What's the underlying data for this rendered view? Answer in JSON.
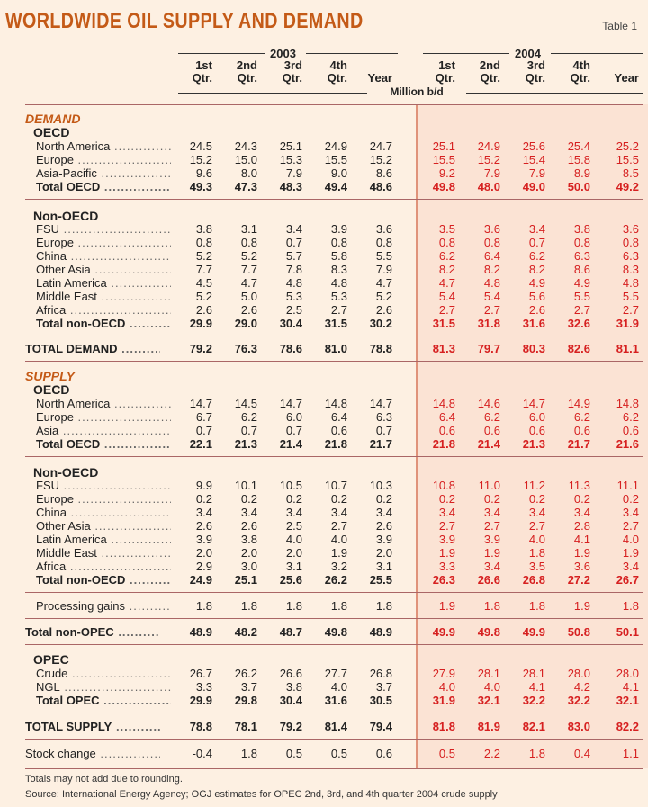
{
  "title": "Worldwide oil supply and demand",
  "table_label": "Table 1",
  "years": [
    "2003",
    "2004"
  ],
  "column_headers": [
    [
      "1st",
      "Qtr."
    ],
    [
      "2nd",
      "Qtr."
    ],
    [
      "3rd",
      "Qtr."
    ],
    [
      "4th",
      "Qtr."
    ],
    [
      "",
      "Year"
    ],
    [
      "1st",
      "Qtr."
    ],
    [
      "2nd",
      "Qtr."
    ],
    [
      "3rd",
      "Qtr."
    ],
    [
      "4th",
      "Qtr."
    ],
    [
      "",
      "Year"
    ]
  ],
  "unit": "Million b/d",
  "sections": {
    "demand": "DEMAND",
    "supply": "SUPPLY"
  },
  "rows": [
    {
      "type": "section",
      "text": "DEMAND",
      "key": "demand"
    },
    {
      "type": "sub",
      "text": "OECD"
    },
    {
      "type": "data",
      "label": "North America",
      "values": [
        "24.5",
        "24.3",
        "25.1",
        "24.9",
        "24.7",
        "25.1",
        "24.9",
        "25.6",
        "25.4",
        "25.2"
      ]
    },
    {
      "type": "data",
      "label": "Europe",
      "values": [
        "15.2",
        "15.0",
        "15.3",
        "15.5",
        "15.2",
        "15.5",
        "15.2",
        "15.4",
        "15.8",
        "15.5"
      ]
    },
    {
      "type": "data",
      "label": "Asia-Pacific",
      "values": [
        "9.6",
        "8.0",
        "7.9",
        "9.0",
        "8.6",
        "9.2",
        "7.9",
        "7.9",
        "8.9",
        "8.5"
      ]
    },
    {
      "type": "total",
      "label": "Total OECD",
      "values": [
        "49.3",
        "47.3",
        "48.3",
        "49.4",
        "48.6",
        "49.8",
        "48.0",
        "49.0",
        "50.0",
        "49.2"
      ]
    },
    {
      "type": "sub",
      "text": "Non-OECD"
    },
    {
      "type": "data",
      "label": "FSU",
      "values": [
        "3.8",
        "3.1",
        "3.4",
        "3.9",
        "3.6",
        "3.5",
        "3.6",
        "3.4",
        "3.8",
        "3.6"
      ]
    },
    {
      "type": "data",
      "label": "Europe",
      "values": [
        "0.8",
        "0.8",
        "0.7",
        "0.8",
        "0.8",
        "0.8",
        "0.8",
        "0.7",
        "0.8",
        "0.8"
      ]
    },
    {
      "type": "data",
      "label": "China",
      "values": [
        "5.2",
        "5.2",
        "5.7",
        "5.8",
        "5.5",
        "6.2",
        "6.4",
        "6.2",
        "6.3",
        "6.3"
      ]
    },
    {
      "type": "data",
      "label": "Other Asia",
      "values": [
        "7.7",
        "7.7",
        "7.8",
        "8.3",
        "7.9",
        "8.2",
        "8.2",
        "8.2",
        "8.6",
        "8.3"
      ]
    },
    {
      "type": "data",
      "label": "Latin America",
      "values": [
        "4.5",
        "4.7",
        "4.8",
        "4.8",
        "4.7",
        "4.7",
        "4.8",
        "4.9",
        "4.9",
        "4.8"
      ]
    },
    {
      "type": "data",
      "label": "Middle East",
      "values": [
        "5.2",
        "5.0",
        "5.3",
        "5.3",
        "5.2",
        "5.4",
        "5.4",
        "5.6",
        "5.5",
        "5.5"
      ]
    },
    {
      "type": "data",
      "label": "Africa",
      "values": [
        "2.6",
        "2.6",
        "2.5",
        "2.7",
        "2.6",
        "2.7",
        "2.7",
        "2.6",
        "2.7",
        "2.7"
      ]
    },
    {
      "type": "total",
      "label": "Total non-OECD",
      "values": [
        "29.9",
        "29.0",
        "30.4",
        "31.5",
        "30.2",
        "31.5",
        "31.8",
        "31.6",
        "32.6",
        "31.9"
      ]
    },
    {
      "type": "big",
      "label": "TOTAL DEMAND",
      "values": [
        "79.2",
        "76.3",
        "78.6",
        "81.0",
        "78.8",
        "81.3",
        "79.7",
        "80.3",
        "82.6",
        "81.1"
      ]
    },
    {
      "type": "section",
      "text": "SUPPLY",
      "key": "supply"
    },
    {
      "type": "sub",
      "text": "OECD"
    },
    {
      "type": "data",
      "label": "North America",
      "values": [
        "14.7",
        "14.5",
        "14.7",
        "14.8",
        "14.7",
        "14.8",
        "14.6",
        "14.7",
        "14.9",
        "14.8"
      ]
    },
    {
      "type": "data",
      "label": "Europe",
      "values": [
        "6.7",
        "6.2",
        "6.0",
        "6.4",
        "6.3",
        "6.4",
        "6.2",
        "6.0",
        "6.2",
        "6.2"
      ]
    },
    {
      "type": "data",
      "label": "Asia",
      "values": [
        "0.7",
        "0.7",
        "0.7",
        "0.6",
        "0.7",
        "0.6",
        "0.6",
        "0.6",
        "0.6",
        "0.6"
      ]
    },
    {
      "type": "total",
      "label": "Total OECD",
      "values": [
        "22.1",
        "21.3",
        "21.4",
        "21.8",
        "21.7",
        "21.8",
        "21.4",
        "21.3",
        "21.7",
        "21.6"
      ]
    },
    {
      "type": "sub",
      "text": "Non-OECD"
    },
    {
      "type": "data",
      "label": "FSU",
      "values": [
        "9.9",
        "10.1",
        "10.5",
        "10.7",
        "10.3",
        "10.8",
        "11.0",
        "11.2",
        "11.3",
        "11.1"
      ]
    },
    {
      "type": "data",
      "label": "Europe",
      "values": [
        "0.2",
        "0.2",
        "0.2",
        "0.2",
        "0.2",
        "0.2",
        "0.2",
        "0.2",
        "0.2",
        "0.2"
      ]
    },
    {
      "type": "data",
      "label": "China",
      "values": [
        "3.4",
        "3.4",
        "3.4",
        "3.4",
        "3.4",
        "3.4",
        "3.4",
        "3.4",
        "3.4",
        "3.4"
      ]
    },
    {
      "type": "data",
      "label": "Other Asia",
      "values": [
        "2.6",
        "2.6",
        "2.5",
        "2.7",
        "2.6",
        "2.7",
        "2.7",
        "2.7",
        "2.8",
        "2.7"
      ]
    },
    {
      "type": "data",
      "label": "Latin America",
      "values": [
        "3.9",
        "3.8",
        "4.0",
        "4.0",
        "3.9",
        "3.9",
        "3.9",
        "4.0",
        "4.1",
        "4.0"
      ]
    },
    {
      "type": "data",
      "label": "Middle East",
      "values": [
        "2.0",
        "2.0",
        "2.0",
        "1.9",
        "2.0",
        "1.9",
        "1.9",
        "1.8",
        "1.9",
        "1.9"
      ]
    },
    {
      "type": "data",
      "label": "Africa",
      "values": [
        "2.9",
        "3.0",
        "3.1",
        "3.2",
        "3.1",
        "3.3",
        "3.4",
        "3.5",
        "3.6",
        "3.4"
      ]
    },
    {
      "type": "total",
      "label": "Total non-OECD",
      "values": [
        "24.9",
        "25.1",
        "25.6",
        "26.2",
        "25.5",
        "26.3",
        "26.6",
        "26.8",
        "27.2",
        "26.7"
      ]
    },
    {
      "type": "data",
      "label": "Processing gains",
      "values": [
        "1.8",
        "1.8",
        "1.8",
        "1.8",
        "1.8",
        "1.9",
        "1.8",
        "1.8",
        "1.9",
        "1.8"
      ]
    },
    {
      "type": "total",
      "label": "Total non-OPEC",
      "values": [
        "48.9",
        "48.2",
        "48.7",
        "49.8",
        "48.9",
        "49.9",
        "49.8",
        "49.9",
        "50.8",
        "50.1"
      ]
    },
    {
      "type": "sub",
      "text": "OPEC"
    },
    {
      "type": "data",
      "label": "Crude",
      "values": [
        "26.7",
        "26.2",
        "26.6",
        "27.7",
        "26.8",
        "27.9",
        "28.1",
        "28.1",
        "28.0",
        "28.0"
      ]
    },
    {
      "type": "data",
      "label": "NGL",
      "values": [
        "3.3",
        "3.7",
        "3.8",
        "4.0",
        "3.7",
        "4.0",
        "4.0",
        "4.1",
        "4.2",
        "4.1"
      ]
    },
    {
      "type": "total",
      "label": "Total OPEC",
      "values": [
        "29.9",
        "29.8",
        "30.4",
        "31.6",
        "30.5",
        "31.9",
        "32.1",
        "32.2",
        "32.2",
        "32.1"
      ]
    },
    {
      "type": "big",
      "label": "TOTAL SUPPLY",
      "values": [
        "78.8",
        "78.1",
        "79.2",
        "81.4",
        "79.4",
        "81.8",
        "81.9",
        "82.1",
        "83.0",
        "82.2"
      ]
    },
    {
      "type": "plain",
      "label": "Stock change",
      "values": [
        "-0.4",
        "1.8",
        "0.5",
        "0.5",
        "0.6",
        "0.5",
        "2.2",
        "1.8",
        "0.4",
        "1.1"
      ]
    }
  ],
  "footnotes": [
    "Totals may not add due to rounding.",
    "Source: International Energy Agency; OGJ estimates for OPEC 2nd, 3rd, and 4th quarter 2004 crude supply"
  ],
  "colors": {
    "title": "#c45a17",
    "values_2004": "#d62020",
    "background": "#fdf0e2",
    "band_2004": "#fbe3d4"
  }
}
